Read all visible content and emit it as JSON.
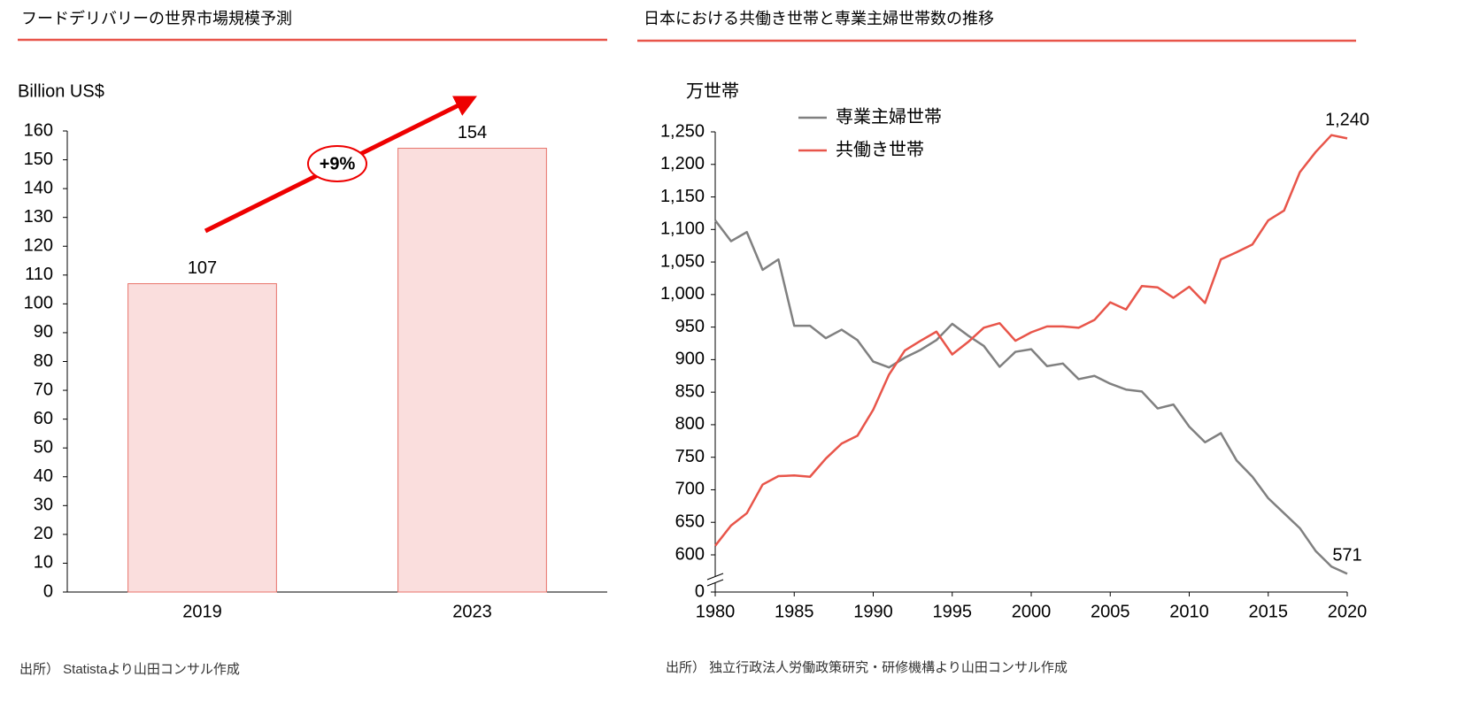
{
  "chart_data": [
    {
      "type": "bar",
      "title": "フードデリバリーの世界市場規模予測",
      "y_label": "Billion US$",
      "categories": [
        "2019",
        "2023"
      ],
      "values": [
        107,
        154
      ],
      "color": "#fadedd",
      "edge_color": "#e8736b",
      "ylim": [
        0,
        160
      ],
      "yticks": [
        0,
        10,
        20,
        30,
        40,
        50,
        60,
        70,
        80,
        90,
        100,
        110,
        120,
        130,
        140,
        150,
        160
      ],
      "annotation": "+9%",
      "source": "出所） Statistaより山田コンサル作成"
    },
    {
      "type": "line",
      "title": "日本における共働き世帯と専業主婦世帯数の推移",
      "y_label": "万世帯",
      "x": [
        1980,
        1981,
        1982,
        1983,
        1984,
        1985,
        1986,
        1987,
        1988,
        1989,
        1990,
        1991,
        1992,
        1993,
        1994,
        1995,
        1996,
        1997,
        1998,
        1999,
        2000,
        2001,
        2002,
        2003,
        2004,
        2005,
        2006,
        2007,
        2008,
        2009,
        2010,
        2011,
        2012,
        2013,
        2014,
        2015,
        2016,
        2017,
        2018,
        2019,
        2020
      ],
      "xlim": [
        1980,
        2020
      ],
      "xticks": [
        1980,
        1985,
        1990,
        1995,
        2000,
        2005,
        2010,
        2015,
        2020
      ],
      "ylim": [
        0,
        1250
      ],
      "axis_break": true,
      "yticks": [
        0,
        600,
        650,
        700,
        750,
        800,
        850,
        900,
        950,
        {
          "value": 1000,
          "label": "1,000"
        },
        {
          "value": 1050,
          "label": "1,050"
        },
        {
          "value": 1100,
          "label": "1,100"
        },
        {
          "value": 1150,
          "label": "1,150"
        },
        {
          "value": 1200,
          "label": "1,200"
        },
        {
          "value": 1250,
          "label": "1,250"
        }
      ],
      "legend": "upper left",
      "series": [
        {
          "name": "専業主婦世帯",
          "color": "#808080",
          "values": [
            1114,
            1082,
            1096,
            1038,
            1054,
            952,
            952,
            933,
            946,
            930,
            897,
            888,
            903,
            915,
            930,
            955,
            937,
            921,
            889,
            912,
            916,
            890,
            894,
            870,
            875,
            863,
            854,
            851,
            825,
            831,
            797,
            773,
            787,
            745,
            720,
            687,
            664,
            641,
            606,
            582,
            571
          ],
          "value_labels": [
            null,
            null,
            null,
            null,
            null,
            null,
            null,
            null,
            null,
            null,
            null,
            null,
            null,
            null,
            null,
            null,
            null,
            null,
            null,
            null,
            null,
            null,
            null,
            null,
            null,
            null,
            null,
            null,
            null,
            null,
            null,
            null,
            null,
            null,
            null,
            null,
            null,
            null,
            null,
            null,
            "571"
          ]
        },
        {
          "name": "共働き世帯",
          "color": "#e8554a",
          "values": [
            614,
            645,
            664,
            708,
            721,
            722,
            720,
            748,
            771,
            783,
            823,
            877,
            914,
            929,
            943,
            908,
            927,
            949,
            956,
            929,
            942,
            951,
            951,
            949,
            961,
            988,
            977,
            1013,
            1011,
            995,
            1012,
            987,
            1054,
            1065,
            1077,
            1114,
            1129,
            1188,
            1219,
            1245,
            1240
          ],
          "value_labels": [
            null,
            null,
            null,
            null,
            null,
            null,
            null,
            null,
            null,
            null,
            null,
            null,
            null,
            null,
            null,
            null,
            null,
            null,
            null,
            null,
            null,
            null,
            null,
            null,
            null,
            null,
            null,
            null,
            null,
            null,
            null,
            null,
            null,
            null,
            null,
            null,
            null,
            null,
            null,
            null,
            "1,240"
          ]
        }
      ],
      "source": "出所） 独立行政法人労働政策研究・研修機構より山田コンサル作成"
    }
  ]
}
